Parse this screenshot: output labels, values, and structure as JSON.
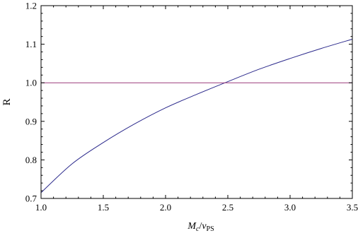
{
  "chart_data": {
    "type": "line",
    "title": "",
    "xlabel": {
      "main": "M",
      "main_sub": "c",
      "sep": "/",
      "denom": "v",
      "denom_sub": "PS"
    },
    "ylabel": "R",
    "xlim": [
      1.0,
      3.5
    ],
    "ylim": [
      0.7,
      1.2
    ],
    "x_ticks": [
      1.0,
      1.5,
      2.0,
      2.5,
      3.0,
      3.5
    ],
    "x_tick_labels": [
      "1.0",
      "1.5",
      "2.0",
      "2.5",
      "3.0",
      "3.5"
    ],
    "y_ticks": [
      0.7,
      0.8,
      0.9,
      1.0,
      1.1,
      1.2
    ],
    "y_tick_labels": [
      "0.7",
      "0.8",
      "0.9",
      "1.0",
      "1.1",
      "1.2"
    ],
    "grid": false,
    "legend": "none",
    "series": [
      {
        "color": "#2c2a8c",
        "x": [
          1.0,
          1.25,
          1.5,
          1.75,
          2.0,
          2.25,
          2.5,
          2.75,
          3.0,
          3.25,
          3.5
        ],
        "y": [
          0.715,
          0.79,
          0.845,
          0.893,
          0.935,
          0.97,
          1.003,
          1.035,
          1.063,
          1.089,
          1.113
        ]
      },
      {
        "color": "#9b3c7c",
        "x": [
          1.0,
          3.5
        ],
        "y": [
          1.0,
          1.0
        ]
      }
    ]
  }
}
